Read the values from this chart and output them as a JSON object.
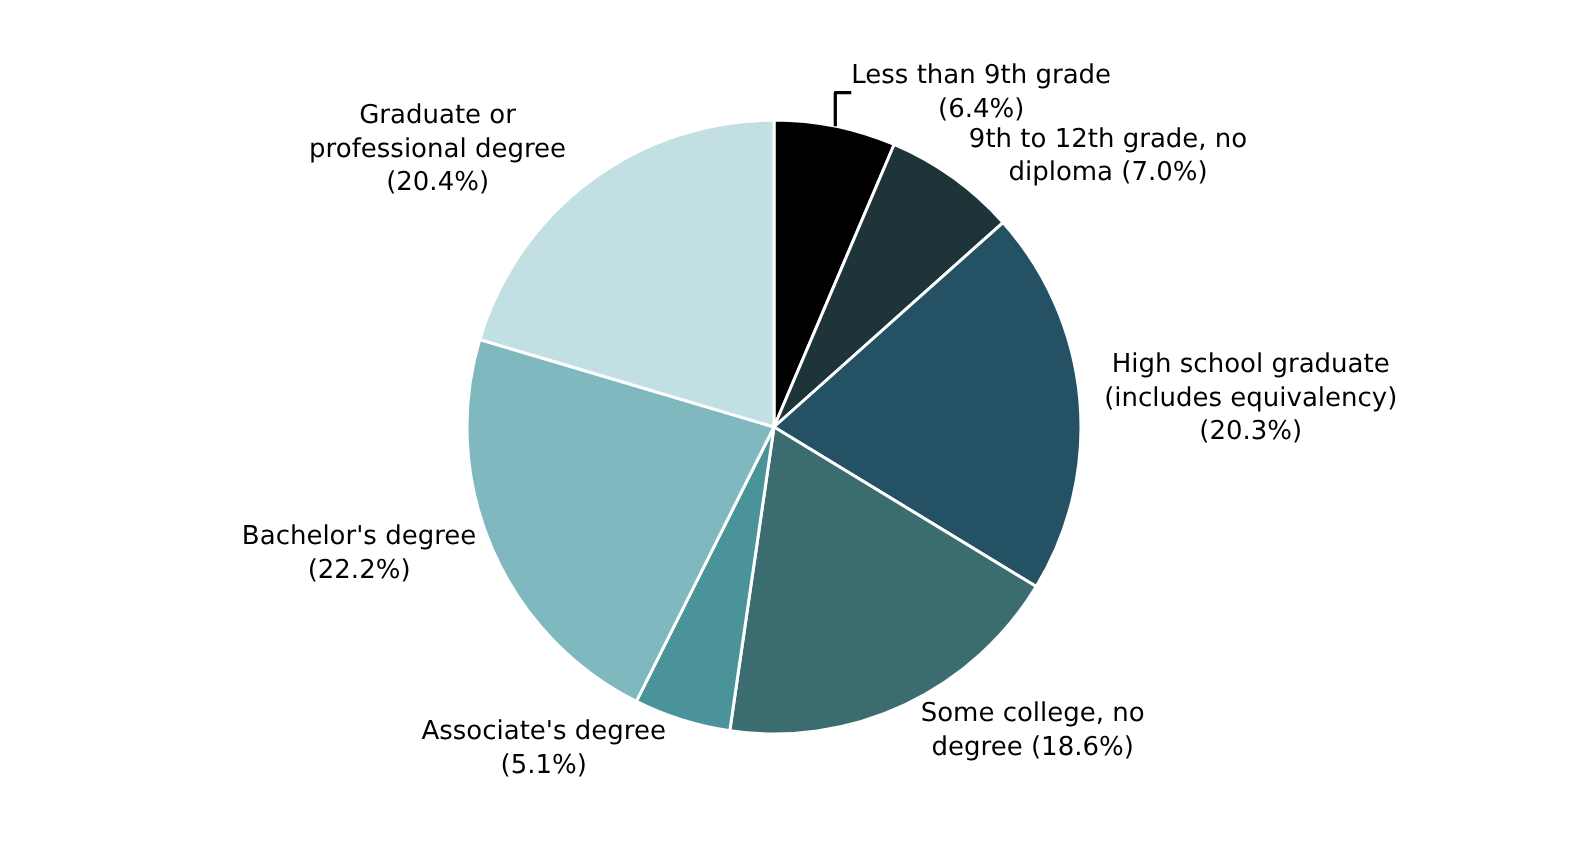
{
  "chart_data": {
    "type": "pie",
    "categories": [
      "Less than 9th grade",
      "9th to 12th grade, no diploma",
      "High school graduate (includes equivalency)",
      "Some college, no degree",
      "Associate's degree",
      "Bachelor's degree",
      "Graduate or professional degree"
    ],
    "values": [
      6.4,
      7.0,
      20.3,
      18.6,
      5.1,
      22.2,
      20.4
    ],
    "value_labels": [
      "(6.4%)",
      "(7.0%)",
      "(20.3%)",
      "(18.6%)",
      "(5.1%)",
      "(22.2%)",
      "(20.4%)"
    ],
    "colors": [
      "#000000",
      "#1f3439",
      "#245264",
      "#3b6c70",
      "#4a9499",
      "#7fb8bf",
      "#c2e0e3"
    ],
    "legend": false
  }
}
